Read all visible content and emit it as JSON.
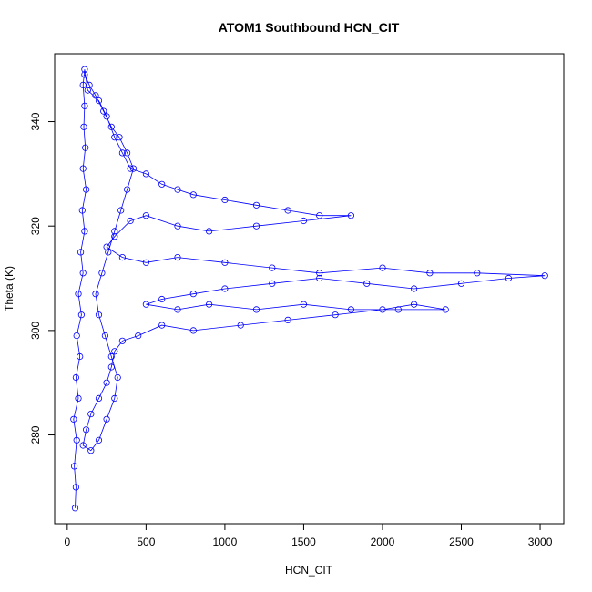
{
  "chart_data": {
    "type": "line",
    "title": "ATOM1 Southbound HCN_CIT",
    "xlabel": "HCN_CIT",
    "ylabel": "Theta (K)",
    "xlim": [
      -80,
      3150
    ],
    "ylim": [
      263,
      353
    ],
    "xticks": [
      0,
      500,
      1000,
      1500,
      2000,
      2500,
      3000
    ],
    "yticks": [
      280,
      300,
      320,
      340
    ],
    "grid": false,
    "legend": "none",
    "series_color": "#0000ff",
    "marker": "open-circle",
    "series": [
      {
        "points": [
          [
            50,
            266
          ],
          [
            55,
            270
          ],
          [
            45,
            274
          ],
          [
            60,
            279
          ],
          [
            40,
            283
          ],
          [
            70,
            287
          ],
          [
            55,
            291
          ],
          [
            80,
            295
          ],
          [
            60,
            299
          ],
          [
            90,
            303
          ],
          [
            70,
            307
          ],
          [
            100,
            311
          ],
          [
            85,
            315
          ],
          [
            110,
            319
          ],
          [
            95,
            323
          ],
          [
            120,
            327
          ],
          [
            100,
            331
          ],
          [
            115,
            335
          ],
          [
            105,
            339
          ],
          [
            110,
            343
          ],
          [
            100,
            347
          ],
          [
            110,
            350
          ],
          [
            130,
            346
          ],
          [
            200,
            344
          ],
          [
            250,
            341
          ],
          [
            300,
            337
          ],
          [
            350,
            334
          ],
          [
            400,
            331
          ],
          [
            500,
            330
          ],
          [
            600,
            328
          ],
          [
            700,
            327
          ],
          [
            800,
            326
          ],
          [
            1000,
            325
          ],
          [
            1200,
            324
          ],
          [
            1400,
            323
          ],
          [
            1600,
            322
          ],
          [
            1800,
            322
          ],
          [
            1500,
            321
          ],
          [
            1200,
            320
          ],
          [
            900,
            319
          ],
          [
            700,
            320
          ],
          [
            500,
            322
          ],
          [
            400,
            321
          ],
          [
            300,
            318
          ],
          [
            250,
            316
          ],
          [
            350,
            314
          ],
          [
            500,
            313
          ],
          [
            700,
            314
          ],
          [
            1000,
            313
          ],
          [
            1300,
            312
          ],
          [
            1600,
            311
          ],
          [
            2000,
            312
          ],
          [
            2300,
            311
          ],
          [
            2600,
            311
          ],
          [
            3030,
            310.5
          ],
          [
            2800,
            310
          ],
          [
            2500,
            309
          ],
          [
            2200,
            308
          ],
          [
            1900,
            309
          ],
          [
            1600,
            310
          ],
          [
            1300,
            309
          ],
          [
            1000,
            308
          ],
          [
            800,
            307
          ],
          [
            600,
            306
          ],
          [
            500,
            305
          ],
          [
            700,
            304
          ],
          [
            900,
            305
          ],
          [
            1200,
            304
          ],
          [
            1500,
            305
          ],
          [
            1800,
            304
          ],
          [
            2100,
            304
          ],
          [
            2400,
            304
          ],
          [
            2200,
            305
          ],
          [
            2000,
            304
          ],
          [
            1700,
            303
          ],
          [
            1400,
            302
          ],
          [
            1100,
            301
          ],
          [
            800,
            300
          ],
          [
            600,
            301
          ],
          [
            450,
            299
          ],
          [
            350,
            298
          ],
          [
            300,
            296
          ],
          [
            280,
            293
          ],
          [
            250,
            290
          ],
          [
            200,
            287
          ],
          [
            150,
            284
          ],
          [
            120,
            281
          ],
          [
            100,
            278
          ],
          [
            150,
            277
          ],
          [
            200,
            279
          ],
          [
            250,
            283
          ],
          [
            300,
            287
          ],
          [
            320,
            291
          ],
          [
            280,
            295
          ],
          [
            240,
            299
          ],
          [
            200,
            303
          ],
          [
            180,
            307
          ],
          [
            220,
            311
          ],
          [
            260,
            315
          ],
          [
            300,
            319
          ],
          [
            340,
            323
          ],
          [
            380,
            327
          ],
          [
            420,
            331
          ],
          [
            380,
            334
          ],
          [
            330,
            337
          ],
          [
            280,
            339
          ],
          [
            230,
            342
          ],
          [
            180,
            345
          ],
          [
            140,
            347
          ],
          [
            110,
            349
          ]
        ]
      }
    ]
  }
}
